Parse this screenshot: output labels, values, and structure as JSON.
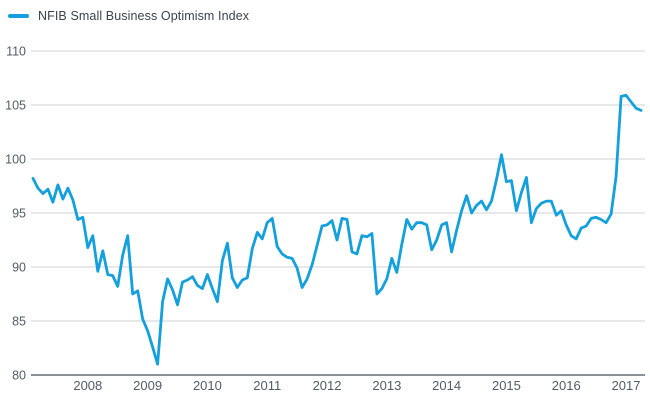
{
  "chart_data": {
    "type": "line",
    "title": "",
    "legend_position": "top-left",
    "grid": "horizontal",
    "ylim": [
      80,
      110
    ],
    "yticks": [
      80,
      85,
      90,
      95,
      100,
      105,
      110
    ],
    "x_tick_years": [
      "2008",
      "2009",
      "2010",
      "2011",
      "2012",
      "2013",
      "2014",
      "2015",
      "2016",
      "2017"
    ],
    "series": [
      {
        "name": "NFIB Small Business Optimism Index",
        "color": "#149fdd",
        "start": "2007-02",
        "frequency": "monthly",
        "values": [
          98.2,
          97.3,
          96.8,
          97.2,
          96.0,
          97.6,
          96.3,
          97.3,
          96.2,
          94.4,
          94.6,
          91.8,
          92.9,
          89.6,
          91.5,
          89.3,
          89.2,
          88.2,
          91.1,
          92.9,
          87.5,
          87.8,
          85.2,
          84.1,
          82.6,
          81.0,
          86.8,
          88.9,
          87.9,
          86.5,
          88.6,
          88.8,
          89.1,
          88.3,
          88.0,
          89.3,
          88.0,
          86.8,
          90.6,
          92.2,
          89.0,
          88.1,
          88.8,
          89.0,
          91.7,
          93.2,
          92.6,
          94.1,
          94.5,
          91.9,
          91.2,
          90.9,
          90.8,
          89.9,
          88.1,
          88.9,
          90.2,
          92.0,
          93.8,
          93.9,
          94.3,
          92.5,
          94.5,
          94.4,
          91.4,
          91.2,
          92.9,
          92.8,
          93.1,
          87.5,
          88.0,
          88.9,
          90.8,
          89.5,
          92.1,
          94.4,
          93.5,
          94.1,
          94.1,
          93.9,
          91.6,
          92.5,
          93.9,
          94.1,
          91.4,
          93.4,
          95.2,
          96.6,
          95.0,
          95.7,
          96.1,
          95.3,
          96.1,
          98.1,
          100.4,
          97.9,
          98.0,
          95.2,
          96.9,
          98.3,
          94.1,
          95.4,
          95.9,
          96.1,
          96.1,
          94.8,
          95.2,
          93.9,
          92.9,
          92.6,
          93.6,
          93.8,
          94.5,
          94.6,
          94.4,
          94.1,
          94.9,
          98.4,
          105.8,
          105.9,
          105.3,
          104.7,
          104.5
        ]
      }
    ],
    "colors": {
      "line": "#149fdd",
      "grid": "#cdd2d6",
      "baseline": "#8a9197",
      "tick_text": "#515c66",
      "background": "#ffffff"
    }
  }
}
